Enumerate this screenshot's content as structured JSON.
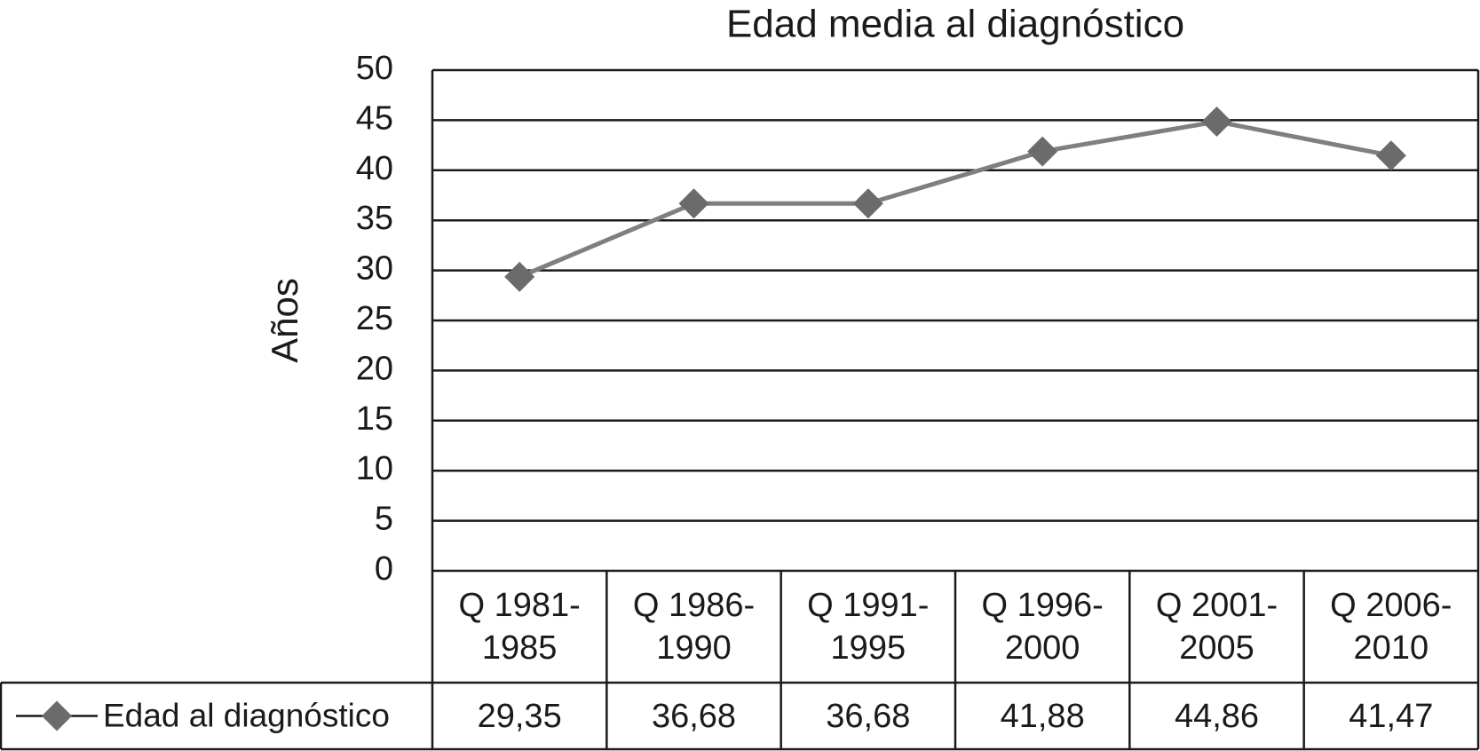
{
  "chart_data": {
    "type": "line",
    "title": "Edad media al diagnóstico",
    "y_label": "Años",
    "categories": [
      "Q 1981-1985",
      "Q 1986-1990",
      "Q 1991-1995",
      "Q 1996-2000",
      "Q 2001-2005",
      "Q 2006-2010"
    ],
    "series": [
      {
        "name": "Edad al diagnóstico",
        "color": "#7f7f7f",
        "marker_color": "#6b6b6b",
        "values": [
          29.35,
          36.68,
          36.68,
          41.88,
          44.86,
          41.47
        ],
        "value_labels": [
          "29,35",
          "36,68",
          "36,68",
          "41,88",
          "44,86",
          "41,47"
        ]
      }
    ],
    "ylim": [
      0,
      50
    ],
    "yticks": [
      0,
      5,
      10,
      15,
      20,
      25,
      30,
      35,
      40,
      45,
      50
    ],
    "grid": true
  }
}
